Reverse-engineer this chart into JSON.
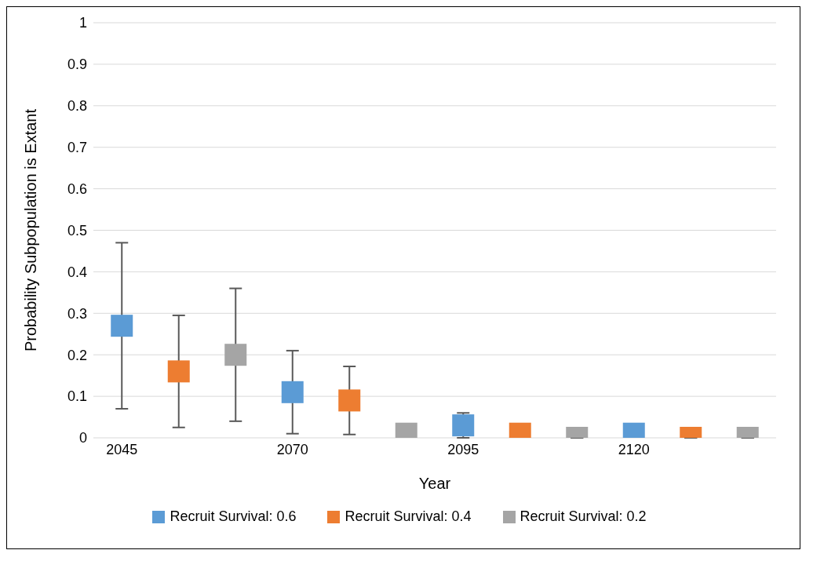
{
  "chart_data": {
    "type": "scatter",
    "xlabel": "Year",
    "ylabel": "Probability Subpopulation is Extant",
    "categories": [
      "2045",
      null,
      null,
      "2070",
      null,
      null,
      "2095",
      null,
      null,
      "2120",
      null,
      null
    ],
    "series": [
      {
        "name": "Recruit Survival: 0.6",
        "color": "#5b9bd5",
        "values": [
          0.27,
          null,
          null,
          0.11,
          null,
          null,
          0.03,
          null,
          null,
          0.01,
          null,
          null
        ],
        "errors": [
          [
            0.07,
            0.47
          ],
          null,
          null,
          [
            0.01,
            0.21
          ],
          null,
          null,
          [
            0,
            0.06
          ],
          null,
          null,
          null,
          null,
          null
        ]
      },
      {
        "name": "Recruit Survival: 0.4",
        "color": "#ed7d31",
        "values": [
          null,
          0.16,
          null,
          null,
          0.09,
          null,
          null,
          0.01,
          null,
          null,
          0,
          null
        ],
        "errors": [
          null,
          [
            0.025,
            0.295
          ],
          null,
          null,
          [
            0.008,
            0.172
          ],
          null,
          null,
          null,
          null,
          null,
          null,
          null
        ]
      },
      {
        "name": "Recruit Survival: 0.2",
        "color": "#a5a5a5",
        "values": [
          null,
          null,
          0.2,
          null,
          null,
          0.01,
          null,
          null,
          0,
          null,
          null,
          0
        ],
        "errors": [
          null,
          null,
          [
            0.04,
            0.36
          ],
          null,
          null,
          null,
          null,
          null,
          null,
          null,
          null,
          null
        ]
      }
    ],
    "ylim": [
      0,
      1
    ],
    "yticks": [
      0,
      0.1,
      0.2,
      0.3,
      0.4,
      0.5,
      0.6,
      0.7,
      0.8,
      0.9,
      1
    ],
    "grid": "y",
    "legend": "bottom",
    "marker": "square"
  }
}
